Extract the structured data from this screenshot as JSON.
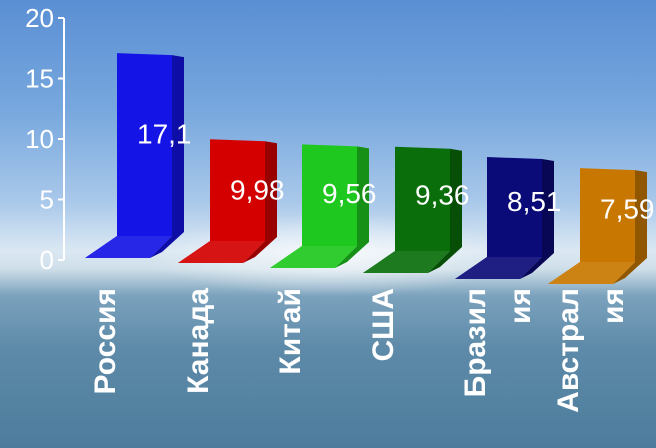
{
  "chart_data": {
    "type": "bar",
    "categories": [
      "Россия",
      "Канада",
      "Китай",
      "США",
      "Бразил\nия",
      "Австрал\nия"
    ],
    "values": [
      17.1,
      9.98,
      9.56,
      9.36,
      8.51,
      7.59
    ],
    "data_labels": [
      "17,1",
      "9,98",
      "9,56",
      "9,36",
      "8,51",
      "7,59"
    ],
    "colors": [
      "#1414e6",
      "#d40000",
      "#1ec81e",
      "#0a6e0a",
      "#0a0a78",
      "#c87800"
    ],
    "y_ticks": [
      "0",
      "5",
      "10",
      "15",
      "20"
    ],
    "ylim": [
      0,
      20
    ],
    "grid": false,
    "legend": "none"
  }
}
